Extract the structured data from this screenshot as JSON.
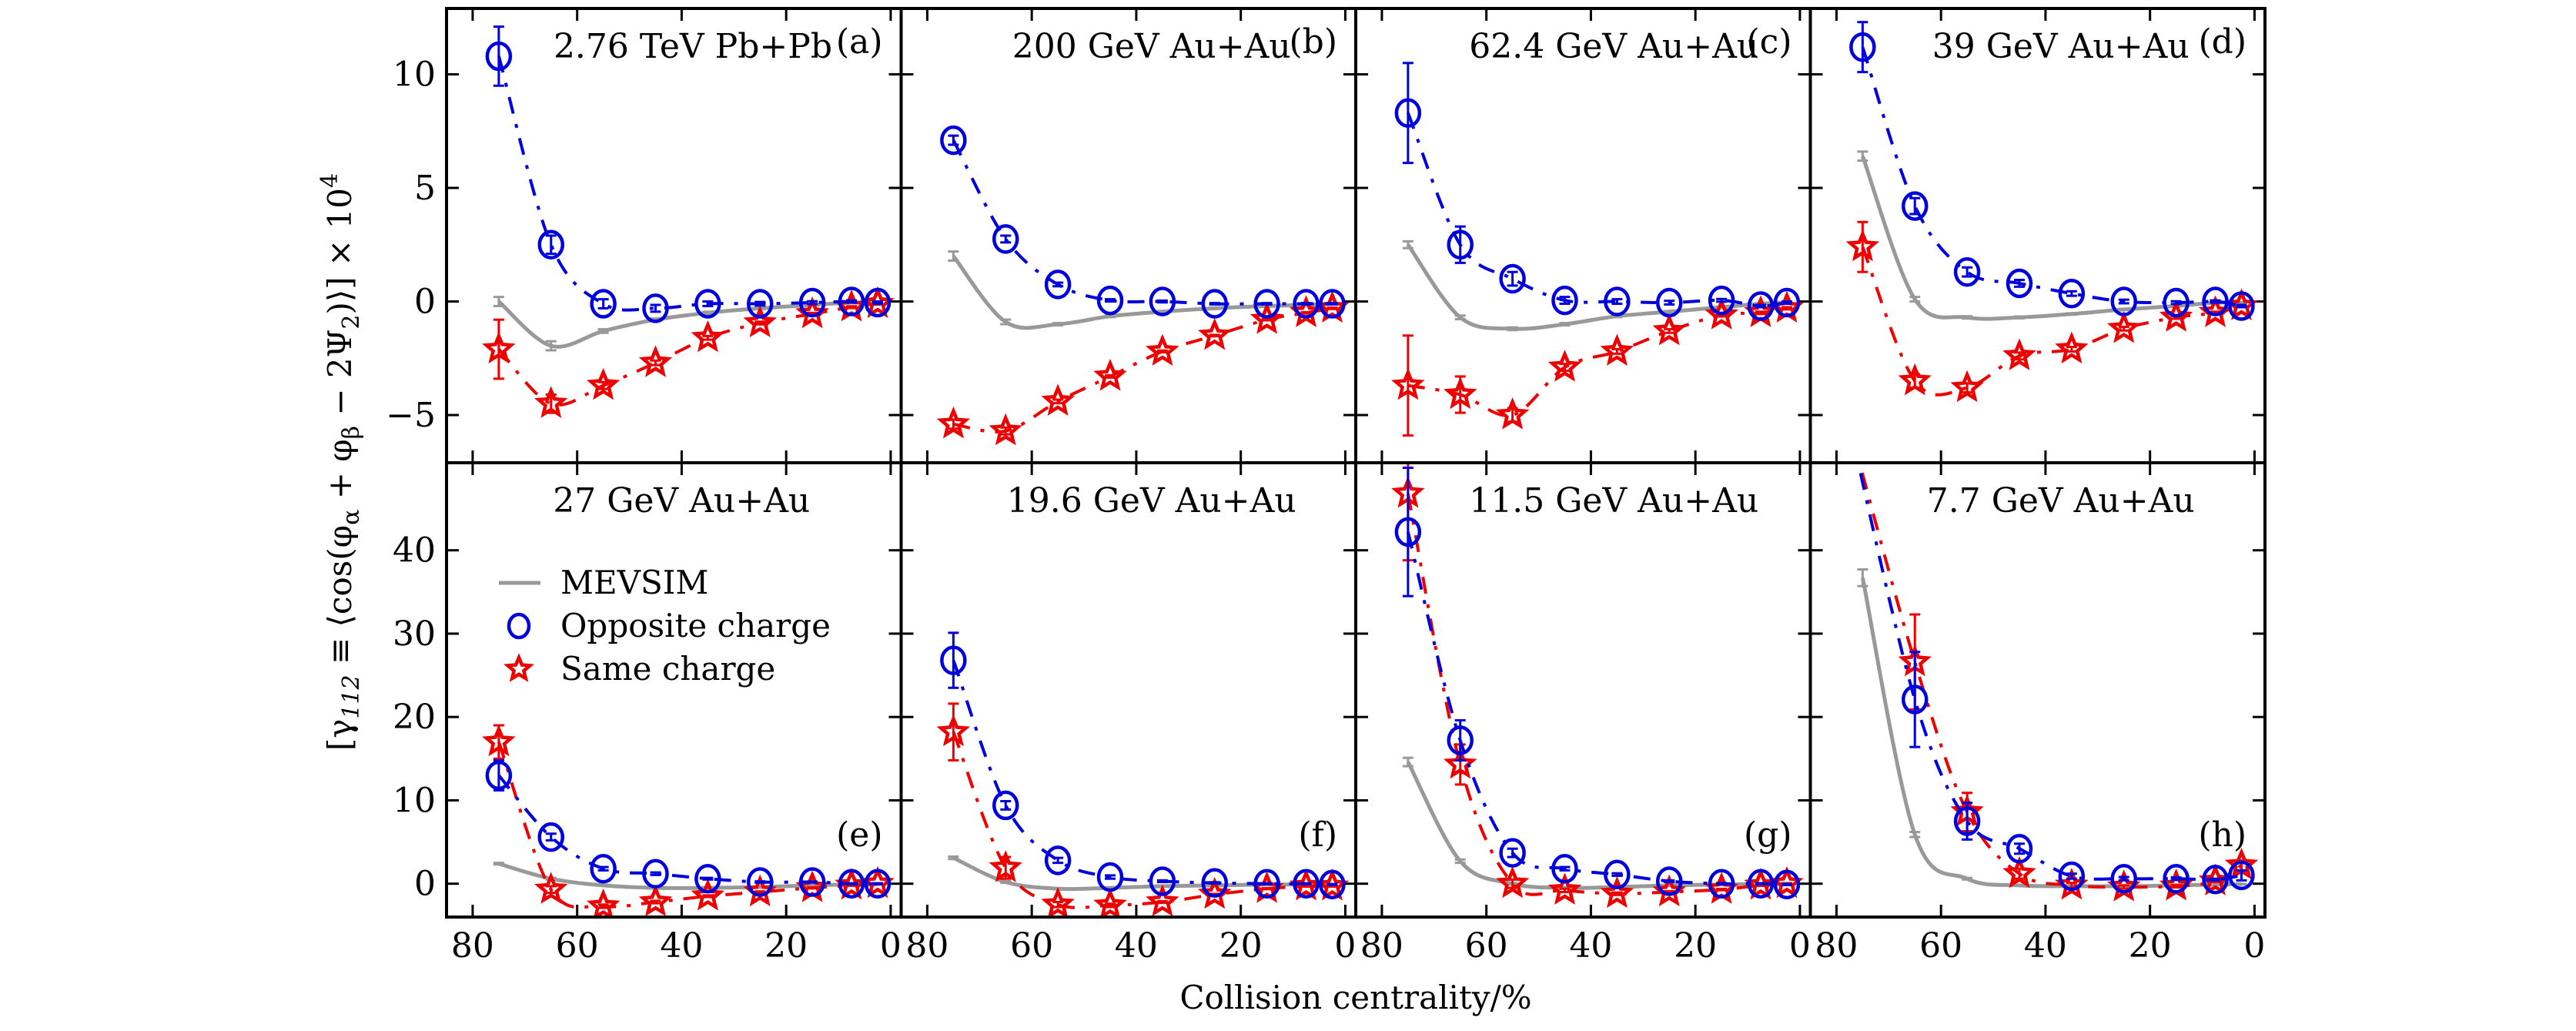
{
  "chart_data": {
    "type": "scatter",
    "layout": "2x4 panel grid",
    "xlabel": "Collision centrality/%",
    "ylabel": "[γ112 ≡ ⟨cos(φα+φβ−2Ψ2)⟩]×10^4",
    "ylabel_parts": {
      "main": "[γ",
      "sub1": "112",
      "mid": " ≡ ⟨cos(φ",
      "sub2": "α",
      "mid2": " + φ",
      "sub3": "β",
      "mid3": " − 2Ψ",
      "sub4": "2",
      "end": ")⟩] × 10",
      "sup": "4"
    },
    "x_ticks": [
      80,
      60,
      40,
      20,
      0
    ],
    "x_tick_labels": [
      "80",
      "60",
      "40",
      "20",
      "0"
    ],
    "xlim": [
      85,
      -2
    ],
    "rows": [
      {
        "ylim": [
          -7.1,
          12.9
        ],
        "y_ticks": [
          -5,
          0,
          5,
          10
        ],
        "y_tick_labels": [
          "−5",
          "0",
          "5",
          "10"
        ]
      },
      {
        "ylim": [
          -4,
          50.5
        ],
        "y_ticks": [
          0,
          10,
          20,
          30,
          40
        ],
        "y_tick_labels": [
          "0",
          "10",
          "20",
          "30",
          "40"
        ]
      }
    ],
    "x": [
      75,
      65,
      55,
      45,
      35,
      25,
      15,
      7.5,
      2.5
    ],
    "legend": {
      "placement": "panel (e), upper-left",
      "entries": [
        {
          "key": "mevsim",
          "label": "MEVSIM"
        },
        {
          "key": "opposite",
          "label": "Opposite charge"
        },
        {
          "key": "same",
          "label": "Same charge"
        }
      ]
    },
    "series_styles": {
      "mevsim": {
        "color": "#999999",
        "line": "solid",
        "marker": "none"
      },
      "opposite": {
        "color": "#0000dd",
        "line": "dash-dot",
        "marker": "open-circle"
      },
      "same": {
        "color": "#ee0000",
        "line": "dash-dot",
        "marker": "open-star"
      }
    },
    "panels": [
      {
        "id": "a",
        "label": "(a)",
        "title": "2.76 TeV Pb+Pb",
        "row": 0,
        "col": 0,
        "label_pos": "top",
        "series": [
          {
            "name": "MEVSIM",
            "key": "mevsim",
            "values": [
              0.0,
              -1.95,
              -1.3,
              -0.8,
              -0.5,
              -0.3,
              -0.15,
              -0.05,
              -0.05
            ],
            "errors": [
              0.2,
              0.2,
              0.08,
              0.05,
              0.05,
              0.03,
              0.03,
              0.02,
              0.02
            ]
          },
          {
            "name": "Opposite charge",
            "key": "opposite",
            "values": [
              10.8,
              2.5,
              -0.1,
              -0.3,
              -0.1,
              -0.1,
              -0.05,
              0.0,
              -0.05
            ],
            "errors": [
              1.3,
              0.4,
              0.2,
              0.15,
              0.1,
              0.08,
              0.06,
              0.05,
              0.05
            ]
          },
          {
            "name": "Same charge",
            "key": "same",
            "values": [
              -2.1,
              -4.5,
              -3.7,
              -2.7,
              -1.6,
              -0.95,
              -0.55,
              -0.25,
              -0.1
            ],
            "errors": [
              1.3,
              0.4,
              0.15,
              0.1,
              0.08,
              0.06,
              0.05,
              0.04,
              0.04
            ]
          }
        ]
      },
      {
        "id": "b",
        "label": "(b)",
        "title": "200 GeV Au+Au",
        "row": 0,
        "col": 1,
        "label_pos": "top",
        "series": [
          {
            "name": "MEVSIM",
            "key": "mevsim",
            "values": [
              2.0,
              -0.9,
              -1.0,
              -0.65,
              -0.45,
              -0.3,
              -0.2,
              -0.15,
              -0.1
            ],
            "errors": [
              0.2,
              0.1,
              0.05,
              0.04,
              0.03,
              0.03,
              0.02,
              0.02,
              0.02
            ]
          },
          {
            "name": "Opposite charge",
            "key": "opposite",
            "values": [
              7.1,
              2.75,
              0.75,
              0.05,
              0.0,
              -0.1,
              -0.1,
              -0.1,
              -0.1
            ],
            "errors": [
              0.2,
              0.15,
              0.08,
              0.05,
              0.04,
              0.03,
              0.03,
              0.03,
              0.03
            ]
          },
          {
            "name": "Same charge",
            "key": "same",
            "values": [
              -5.4,
              -5.7,
              -4.4,
              -3.3,
              -2.2,
              -1.5,
              -0.8,
              -0.5,
              -0.3
            ],
            "errors": [
              0.2,
              0.15,
              0.08,
              0.05,
              0.04,
              0.03,
              0.03,
              0.03,
              0.03
            ]
          }
        ]
      },
      {
        "id": "c",
        "label": "(c)",
        "title": "62.4 GeV Au+Au",
        "row": 0,
        "col": 2,
        "label_pos": "top",
        "series": [
          {
            "name": "MEVSIM",
            "key": "mevsim",
            "values": [
              2.5,
              -0.7,
              -1.2,
              -1.0,
              -0.65,
              -0.45,
              -0.25,
              -0.1,
              -0.05
            ],
            "errors": [
              0.15,
              0.08,
              0.06,
              0.05,
              0.04,
              0.03,
              0.03,
              0.02,
              0.02
            ]
          },
          {
            "name": "Opposite charge",
            "key": "opposite",
            "values": [
              8.3,
              2.5,
              1.0,
              0.05,
              0.0,
              -0.05,
              0.05,
              -0.2,
              -0.05
            ],
            "errors": [
              2.2,
              0.8,
              0.3,
              0.15,
              0.1,
              0.08,
              0.06,
              0.05,
              0.05
            ]
          },
          {
            "name": "Same charge",
            "key": "same",
            "values": [
              -3.7,
              -4.1,
              -5.0,
              -2.9,
              -2.2,
              -1.3,
              -0.6,
              -0.5,
              -0.3
            ],
            "errors": [
              2.2,
              0.8,
              0.3,
              0.15,
              0.1,
              0.08,
              0.06,
              0.05,
              0.05
            ]
          }
        ]
      },
      {
        "id": "d",
        "label": "(d)",
        "title": "39 GeV Au+Au",
        "row": 0,
        "col": 3,
        "label_pos": "top",
        "series": [
          {
            "name": "MEVSIM",
            "key": "mevsim",
            "values": [
              6.4,
              0.1,
              -0.7,
              -0.7,
              -0.55,
              -0.35,
              -0.2,
              -0.05,
              -0.05
            ],
            "errors": [
              0.2,
              0.1,
              0.05,
              0.04,
              0.03,
              0.03,
              0.02,
              0.02,
              0.02
            ]
          },
          {
            "name": "Opposite charge",
            "key": "opposite",
            "values": [
              11.2,
              4.2,
              1.3,
              0.8,
              0.35,
              0.0,
              -0.05,
              0.0,
              -0.2
            ],
            "errors": [
              1.1,
              0.35,
              0.2,
              0.15,
              0.1,
              0.08,
              0.06,
              0.05,
              0.05
            ]
          },
          {
            "name": "Same charge",
            "key": "same",
            "values": [
              2.4,
              -3.5,
              -3.8,
              -2.4,
              -2.1,
              -1.2,
              -0.7,
              -0.5,
              -0.2
            ],
            "errors": [
              1.1,
              0.3,
              0.2,
              0.15,
              0.1,
              0.08,
              0.06,
              0.05,
              0.05
            ]
          }
        ]
      },
      {
        "id": "e",
        "label": "(e)",
        "title": "27 GeV Au+Au",
        "row": 1,
        "col": 0,
        "label_pos": "bottom",
        "series": [
          {
            "name": "MEVSIM",
            "key": "mevsim",
            "values": [
              2.4,
              0.6,
              -0.2,
              -0.5,
              -0.5,
              -0.4,
              -0.2,
              -0.1,
              -0.1
            ],
            "errors": [
              0.1,
              0.1,
              0.05,
              0.05,
              0.04,
              0.03,
              0.03,
              0.02,
              0.02
            ]
          },
          {
            "name": "Opposite charge",
            "key": "opposite",
            "values": [
              13.0,
              5.6,
              1.8,
              1.2,
              0.6,
              0.2,
              0.2,
              0.0,
              0.0
            ],
            "errors": [
              1.8,
              0.4,
              0.2,
              0.15,
              0.1,
              0.08,
              0.06,
              0.05,
              0.05
            ]
          },
          {
            "name": "Same charge",
            "key": "same",
            "values": [
              17.0,
              -0.7,
              -2.7,
              -2.2,
              -1.5,
              -1.0,
              -0.5,
              -0.2,
              0.0
            ],
            "errors": [
              2.0,
              0.4,
              0.2,
              0.15,
              0.1,
              0.08,
              0.06,
              0.05,
              0.05
            ]
          }
        ]
      },
      {
        "id": "f",
        "label": "(f)",
        "title": "19.6 GeV Au+Au",
        "row": 1,
        "col": 1,
        "label_pos": "bottom",
        "series": [
          {
            "name": "MEVSIM",
            "key": "mevsim",
            "values": [
              3.1,
              0.2,
              -0.6,
              -0.5,
              -0.3,
              -0.2,
              -0.1,
              -0.1,
              -0.1
            ],
            "errors": [
              0.15,
              0.1,
              0.05,
              0.05,
              0.04,
              0.03,
              0.03,
              0.02,
              0.02
            ]
          },
          {
            "name": "Opposite charge",
            "key": "opposite",
            "values": [
              26.8,
              9.4,
              2.8,
              0.8,
              0.3,
              0.1,
              0.0,
              0.0,
              -0.1
            ],
            "errors": [
              3.3,
              0.5,
              0.3,
              0.2,
              0.1,
              0.08,
              0.06,
              0.05,
              0.05
            ]
          },
          {
            "name": "Same charge",
            "key": "same",
            "values": [
              18.2,
              1.9,
              -2.5,
              -2.6,
              -2.2,
              -1.3,
              -0.6,
              -0.3,
              -0.3
            ],
            "errors": [
              3.4,
              1.3,
              0.3,
              0.2,
              0.1,
              0.08,
              0.06,
              0.05,
              0.05
            ]
          }
        ]
      },
      {
        "id": "g",
        "label": "(g)",
        "title": "11.5 GeV Au+Au",
        "row": 1,
        "col": 2,
        "label_pos": "bottom",
        "series": [
          {
            "name": "MEVSIM",
            "key": "mevsim",
            "values": [
              14.6,
              2.7,
              0.0,
              -0.5,
              -0.4,
              -0.2,
              -0.1,
              -0.05,
              -0.05
            ],
            "errors": [
              0.5,
              0.2,
              0.08,
              0.05,
              0.04,
              0.03,
              0.03,
              0.02,
              0.02
            ]
          },
          {
            "name": "Opposite charge",
            "key": "opposite",
            "values": [
              42.2,
              17.2,
              3.7,
              1.8,
              1.1,
              0.3,
              0.0,
              0.0,
              -0.1
            ],
            "errors": [
              7.7,
              2.4,
              0.5,
              0.2,
              0.15,
              0.1,
              0.08,
              0.06,
              0.06
            ]
          },
          {
            "name": "Same charge",
            "key": "same",
            "values": [
              46.8,
              14.3,
              0.0,
              -0.8,
              -1.2,
              -1.0,
              -0.7,
              -0.2,
              0.0
            ],
            "errors": [
              8.0,
              2.4,
              0.5,
              0.2,
              0.15,
              0.1,
              0.08,
              0.06,
              0.06
            ]
          }
        ]
      },
      {
        "id": "h",
        "label": "(h)",
        "title": "7.7 GeV Au+Au",
        "row": 1,
        "col": 3,
        "label_pos": "bottom",
        "series": [
          {
            "name": "MEVSIM",
            "key": "mevsim",
            "values": [
              36.7,
              5.9,
              0.6,
              -0.2,
              -0.3,
              -0.3,
              -0.2,
              -0.1,
              -0.05
            ],
            "errors": [
              1.0,
              0.3,
              0.1,
              0.05,
              0.04,
              0.03,
              0.03,
              0.02,
              0.02
            ]
          },
          {
            "name": "Opposite charge",
            "key": "opposite",
            "values": [
              null,
              22.1,
              7.5,
              4.2,
              0.9,
              0.6,
              0.6,
              0.5,
              1.0
            ],
            "errors": [
              null,
              5.7,
              2.2,
              0.6,
              0.3,
              0.2,
              0.15,
              0.1,
              0.6
            ],
            "offscale_top_at": 75
          },
          {
            "name": "Same charge",
            "key": "same",
            "values": [
              null,
              26.6,
              8.6,
              1.2,
              -0.2,
              -0.4,
              -0.3,
              0.3,
              2.2
            ],
            "errors": [
              null,
              5.7,
              2.3,
              0.6,
              0.3,
              0.2,
              0.15,
              0.1,
              0.6
            ],
            "offscale_top_at": 75
          }
        ]
      }
    ]
  }
}
